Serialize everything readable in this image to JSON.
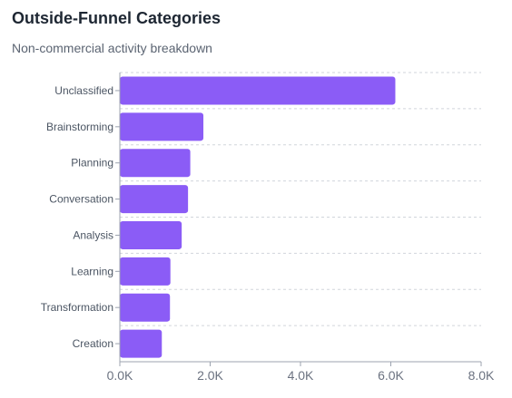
{
  "header": {
    "title": "Outside-Funnel Categories",
    "subtitle": "Non-commercial activity breakdown"
  },
  "colors": {
    "bar": "#8b5cf6",
    "grid": "#d1d5db",
    "axis": "#9ca3af"
  },
  "chart_data": {
    "type": "bar",
    "orientation": "horizontal",
    "title": "Outside-Funnel Categories",
    "subtitle": "Non-commercial activity breakdown",
    "xlabel": "",
    "ylabel": "",
    "categories": [
      "Unclassified",
      "Brainstorming",
      "Planning",
      "Conversation",
      "Analysis",
      "Learning",
      "Transformation",
      "Creation"
    ],
    "values": [
      6100,
      1850,
      1560,
      1510,
      1370,
      1120,
      1110,
      930
    ],
    "xlim": [
      0,
      8000
    ],
    "xticks": [
      0,
      2000,
      4000,
      6000,
      8000
    ],
    "xtick_labels": [
      "0.0K",
      "2.0K",
      "4.0K",
      "6.0K",
      "8.0K"
    ],
    "grid": true,
    "legend": "none"
  }
}
